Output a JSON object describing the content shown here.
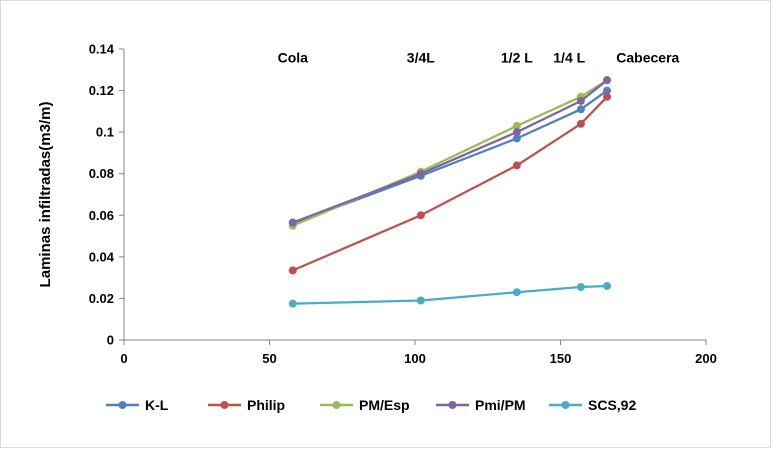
{
  "chart_data": {
    "type": "line",
    "title": "",
    "xlabel": "",
    "ylabel": "Laminas infiltradas(m3/m)",
    "xlim": [
      0,
      200
    ],
    "ylim": [
      0,
      0.14
    ],
    "x_ticks": [
      "0",
      "50",
      "100",
      "150",
      "200"
    ],
    "y_ticks": [
      "0",
      "0.02",
      "0.04",
      "0.06",
      "0.08",
      "0.1",
      "0.12",
      "0.14"
    ],
    "grid": false,
    "legend_position": "bottom",
    "x": [
      58,
      102,
      135,
      157,
      166
    ],
    "series": [
      {
        "name": "K-L",
        "color": "#4f81bd",
        "values": [
          0.056,
          0.079,
          0.097,
          0.111,
          0.12
        ]
      },
      {
        "name": "Philip",
        "color": "#c0504d",
        "values": [
          0.0335,
          0.06,
          0.084,
          0.104,
          0.117
        ]
      },
      {
        "name": "PM/Esp",
        "color": "#9bbb59",
        "values": [
          0.055,
          0.081,
          0.103,
          0.117,
          0.125
        ]
      },
      {
        "name": "Pmi/PM",
        "color": "#8064a2",
        "values": [
          0.0565,
          0.08,
          0.1,
          0.115,
          0.125
        ]
      },
      {
        "name": "SCS,92",
        "color": "#4bacc6",
        "values": [
          0.0175,
          0.019,
          0.023,
          0.0255,
          0.026
        ]
      }
    ],
    "annotations": [
      {
        "text": "Cola",
        "x": 58,
        "y": 0.1335
      },
      {
        "text": "3/4L",
        "x": 102,
        "y": 0.1335
      },
      {
        "text": "1/2 L",
        "x": 135,
        "y": 0.1335
      },
      {
        "text": "1/4 L",
        "x": 153,
        "y": 0.1335
      },
      {
        "text": "Cabecera",
        "x": 180,
        "y": 0.1335
      }
    ]
  }
}
